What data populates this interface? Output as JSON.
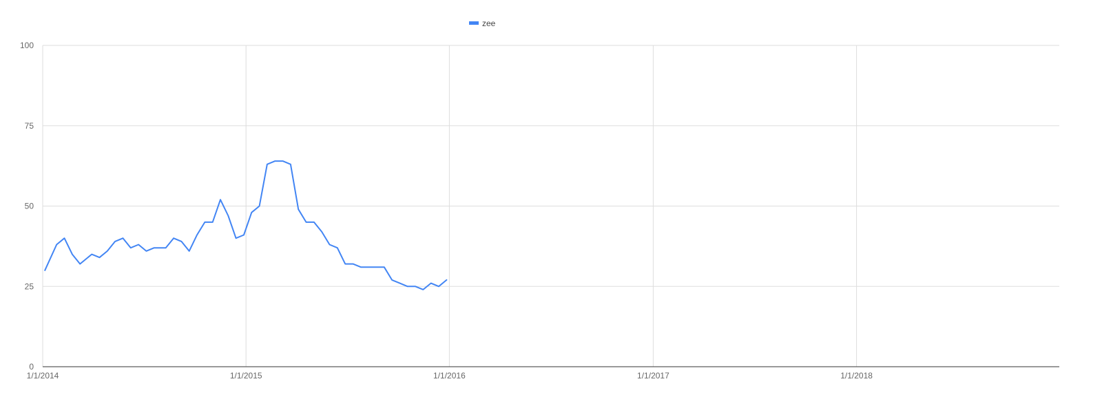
{
  "chart_data": {
    "type": "line",
    "title": "",
    "xlabel": "",
    "ylabel": "",
    "ylim": [
      0,
      100
    ],
    "xlim": [
      "2014-01-01",
      "2018-12-31"
    ],
    "yticks": [
      0,
      25,
      50,
      75,
      100
    ],
    "ytick_labels": [
      "0",
      "25",
      "50",
      "75",
      "100"
    ],
    "xticks": [
      "2014-01-01",
      "2015-01-01",
      "2016-01-01",
      "2017-01-01",
      "2018-01-01"
    ],
    "xtick_labels": [
      "1/1/2014",
      "1/1/2015",
      "1/1/2016",
      "1/1/2017",
      "1/1/2018"
    ],
    "grid": true,
    "legend_position": "top-center",
    "series": [
      {
        "name": "zee",
        "color": "#4285F4",
        "points": [
          [
            "2014-01-05",
            30
          ],
          [
            "2014-01-26",
            38
          ],
          [
            "2014-02-09",
            40
          ],
          [
            "2014-02-23",
            35
          ],
          [
            "2014-03-09",
            32
          ],
          [
            "2014-03-30",
            35
          ],
          [
            "2014-04-13",
            34
          ],
          [
            "2014-04-27",
            36
          ],
          [
            "2014-05-11",
            39
          ],
          [
            "2014-05-25",
            40
          ],
          [
            "2014-06-08",
            37
          ],
          [
            "2014-06-22",
            38
          ],
          [
            "2014-07-06",
            36
          ],
          [
            "2014-07-20",
            37
          ],
          [
            "2014-08-10",
            37
          ],
          [
            "2014-08-24",
            40
          ],
          [
            "2014-09-07",
            39
          ],
          [
            "2014-09-21",
            36
          ],
          [
            "2014-10-05",
            41
          ],
          [
            "2014-10-19",
            45
          ],
          [
            "2014-11-02",
            45
          ],
          [
            "2014-11-16",
            52
          ],
          [
            "2014-11-30",
            47
          ],
          [
            "2014-12-14",
            40
          ],
          [
            "2014-12-28",
            41
          ],
          [
            "2015-01-11",
            48
          ],
          [
            "2015-01-25",
            50
          ],
          [
            "2015-02-08",
            63
          ],
          [
            "2015-02-22",
            64
          ],
          [
            "2015-03-08",
            64
          ],
          [
            "2015-03-22",
            63
          ],
          [
            "2015-04-05",
            49
          ],
          [
            "2015-04-19",
            45
          ],
          [
            "2015-05-03",
            45
          ],
          [
            "2015-05-17",
            42
          ],
          [
            "2015-05-31",
            38
          ],
          [
            "2015-06-14",
            37
          ],
          [
            "2015-06-28",
            32
          ],
          [
            "2015-07-12",
            32
          ],
          [
            "2015-07-26",
            31
          ],
          [
            "2015-08-09",
            31
          ],
          [
            "2015-08-23",
            31
          ],
          [
            "2015-09-06",
            31
          ],
          [
            "2015-09-20",
            27
          ],
          [
            "2015-10-04",
            26
          ],
          [
            "2015-10-18",
            25
          ],
          [
            "2015-11-01",
            25
          ],
          [
            "2015-11-15",
            24
          ],
          [
            "2015-11-29",
            26
          ],
          [
            "2015-12-13",
            25
          ],
          [
            "2015-12-27",
            27
          ]
        ]
      }
    ]
  }
}
